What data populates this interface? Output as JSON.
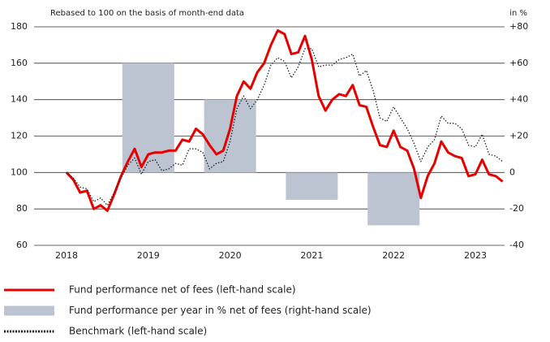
{
  "chart_data": {
    "type": "line",
    "subtitle": "Rebased to 100 on the basis of month-end data",
    "y2_label": "in %",
    "categories": [
      "2018",
      null,
      null,
      null,
      null,
      null,
      null,
      null,
      null,
      null,
      null,
      null,
      "2019",
      null,
      null,
      null,
      null,
      null,
      null,
      null,
      null,
      null,
      null,
      null,
      "2020",
      null,
      null,
      null,
      null,
      null,
      null,
      null,
      null,
      null,
      null,
      null,
      "2021",
      null,
      null,
      null,
      null,
      null,
      null,
      null,
      null,
      null,
      null,
      null,
      "2022",
      null,
      null,
      null,
      null,
      null,
      null,
      null,
      null,
      null,
      null,
      null,
      "2023",
      null,
      null,
      null,
      null
    ],
    "series": [
      {
        "name": "Fund performance net of fees (left-hand scale)",
        "type": "line",
        "color": "#e60000",
        "values": [
          100,
          96,
          89,
          90,
          80,
          82,
          79,
          88,
          98,
          106,
          113,
          103,
          110,
          111,
          111,
          112,
          112,
          118,
          117,
          124,
          121,
          115,
          110,
          112,
          124,
          142,
          150,
          146,
          155,
          160,
          170,
          178,
          176,
          165,
          166,
          175,
          162,
          142,
          134,
          140,
          143,
          142,
          148,
          137,
          136,
          125,
          115,
          114,
          123,
          114,
          112,
          102,
          86,
          98,
          105,
          117,
          111,
          109,
          108,
          98,
          99,
          107,
          99,
          98,
          95
        ]
      },
      {
        "name": "Fund performance per year in % net of fees (right-hand scale)",
        "type": "bar",
        "axis": "y2",
        "color": "#bcc4d1",
        "values": [
          null,
          null,
          null,
          null,
          null,
          null,
          null,
          null,
          null,
          null,
          null,
          null,
          60,
          null,
          null,
          null,
          null,
          null,
          null,
          null,
          null,
          null,
          null,
          null,
          40,
          null,
          null,
          null,
          null,
          null,
          null,
          null,
          null,
          null,
          null,
          null,
          -15,
          null,
          null,
          null,
          null,
          null,
          null,
          null,
          null,
          null,
          null,
          null,
          -29,
          null,
          null,
          null,
          null,
          null,
          null,
          null,
          null,
          null,
          null,
          null,
          null,
          null,
          null,
          null,
          null
        ]
      },
      {
        "name": "Benchmark (left-hand scale)",
        "type": "dotted-line",
        "color": "#222222",
        "values": [
          100,
          97,
          92,
          91,
          84,
          86,
          82,
          89,
          97,
          104,
          108,
          99,
          106,
          107,
          101,
          102,
          105,
          104,
          113,
          113,
          111,
          102,
          105,
          106,
          117,
          135,
          142,
          135,
          140,
          148,
          159,
          163,
          161,
          152,
          158,
          168,
          168,
          158,
          159,
          159,
          162,
          163,
          165,
          153,
          156,
          145,
          130,
          128,
          136,
          130,
          124,
          116,
          106,
          114,
          118,
          131,
          127,
          127,
          124,
          115,
          114,
          121,
          110,
          109,
          106
        ]
      }
    ],
    "ylim": [
      60,
      180
    ],
    "yticks": [
      60,
      80,
      100,
      120,
      140,
      160,
      180
    ],
    "y2lim": [
      -40,
      80
    ],
    "y2ticks": [
      -40,
      -20,
      0,
      {
        "value": 20,
        "label": "+20"
      },
      {
        "value": 40,
        "label": "+40"
      },
      {
        "value": 60,
        "label": "+60"
      },
      {
        "value": 80,
        "label": "+80"
      }
    ],
    "grid": true,
    "legend": "bottom"
  }
}
